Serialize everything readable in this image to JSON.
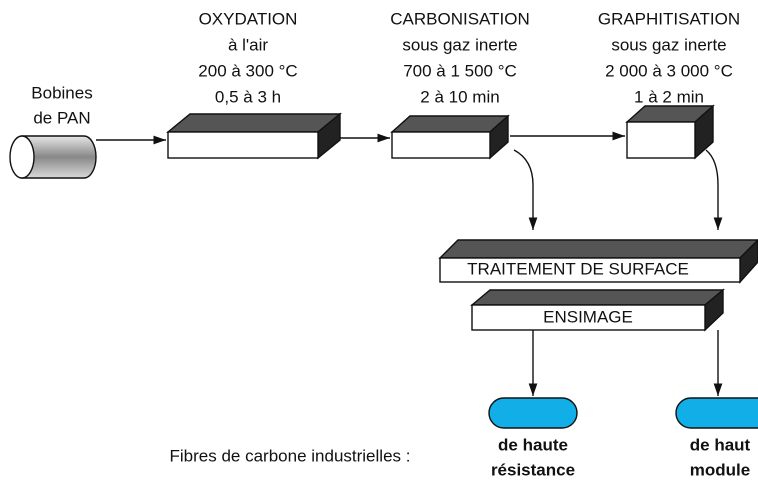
{
  "source": {
    "label": [
      "Bobines",
      "de PAN"
    ]
  },
  "steps": [
    {
      "title": "OXYDATION",
      "lines": [
        "à l'air",
        "200 à 300 °C",
        "0,5 à 3 h"
      ]
    },
    {
      "title": "CARBONISATION",
      "lines": [
        "sous gaz inerte",
        "700 à 1 500 °C",
        "2 à 10 min"
      ]
    },
    {
      "title": "GRAPHITISATION",
      "lines": [
        "sous gaz inerte",
        "2 000 à 3 000 °C",
        "1 à 2 min"
      ]
    }
  ],
  "treatments": [
    "TRAITEMENT DE SURFACE",
    "ENSIMAGE"
  ],
  "outputs": {
    "caption": "Fibres de carbone industrielles :",
    "products": [
      [
        "de haute",
        "résistance"
      ],
      [
        "de haut",
        "module"
      ]
    ]
  }
}
